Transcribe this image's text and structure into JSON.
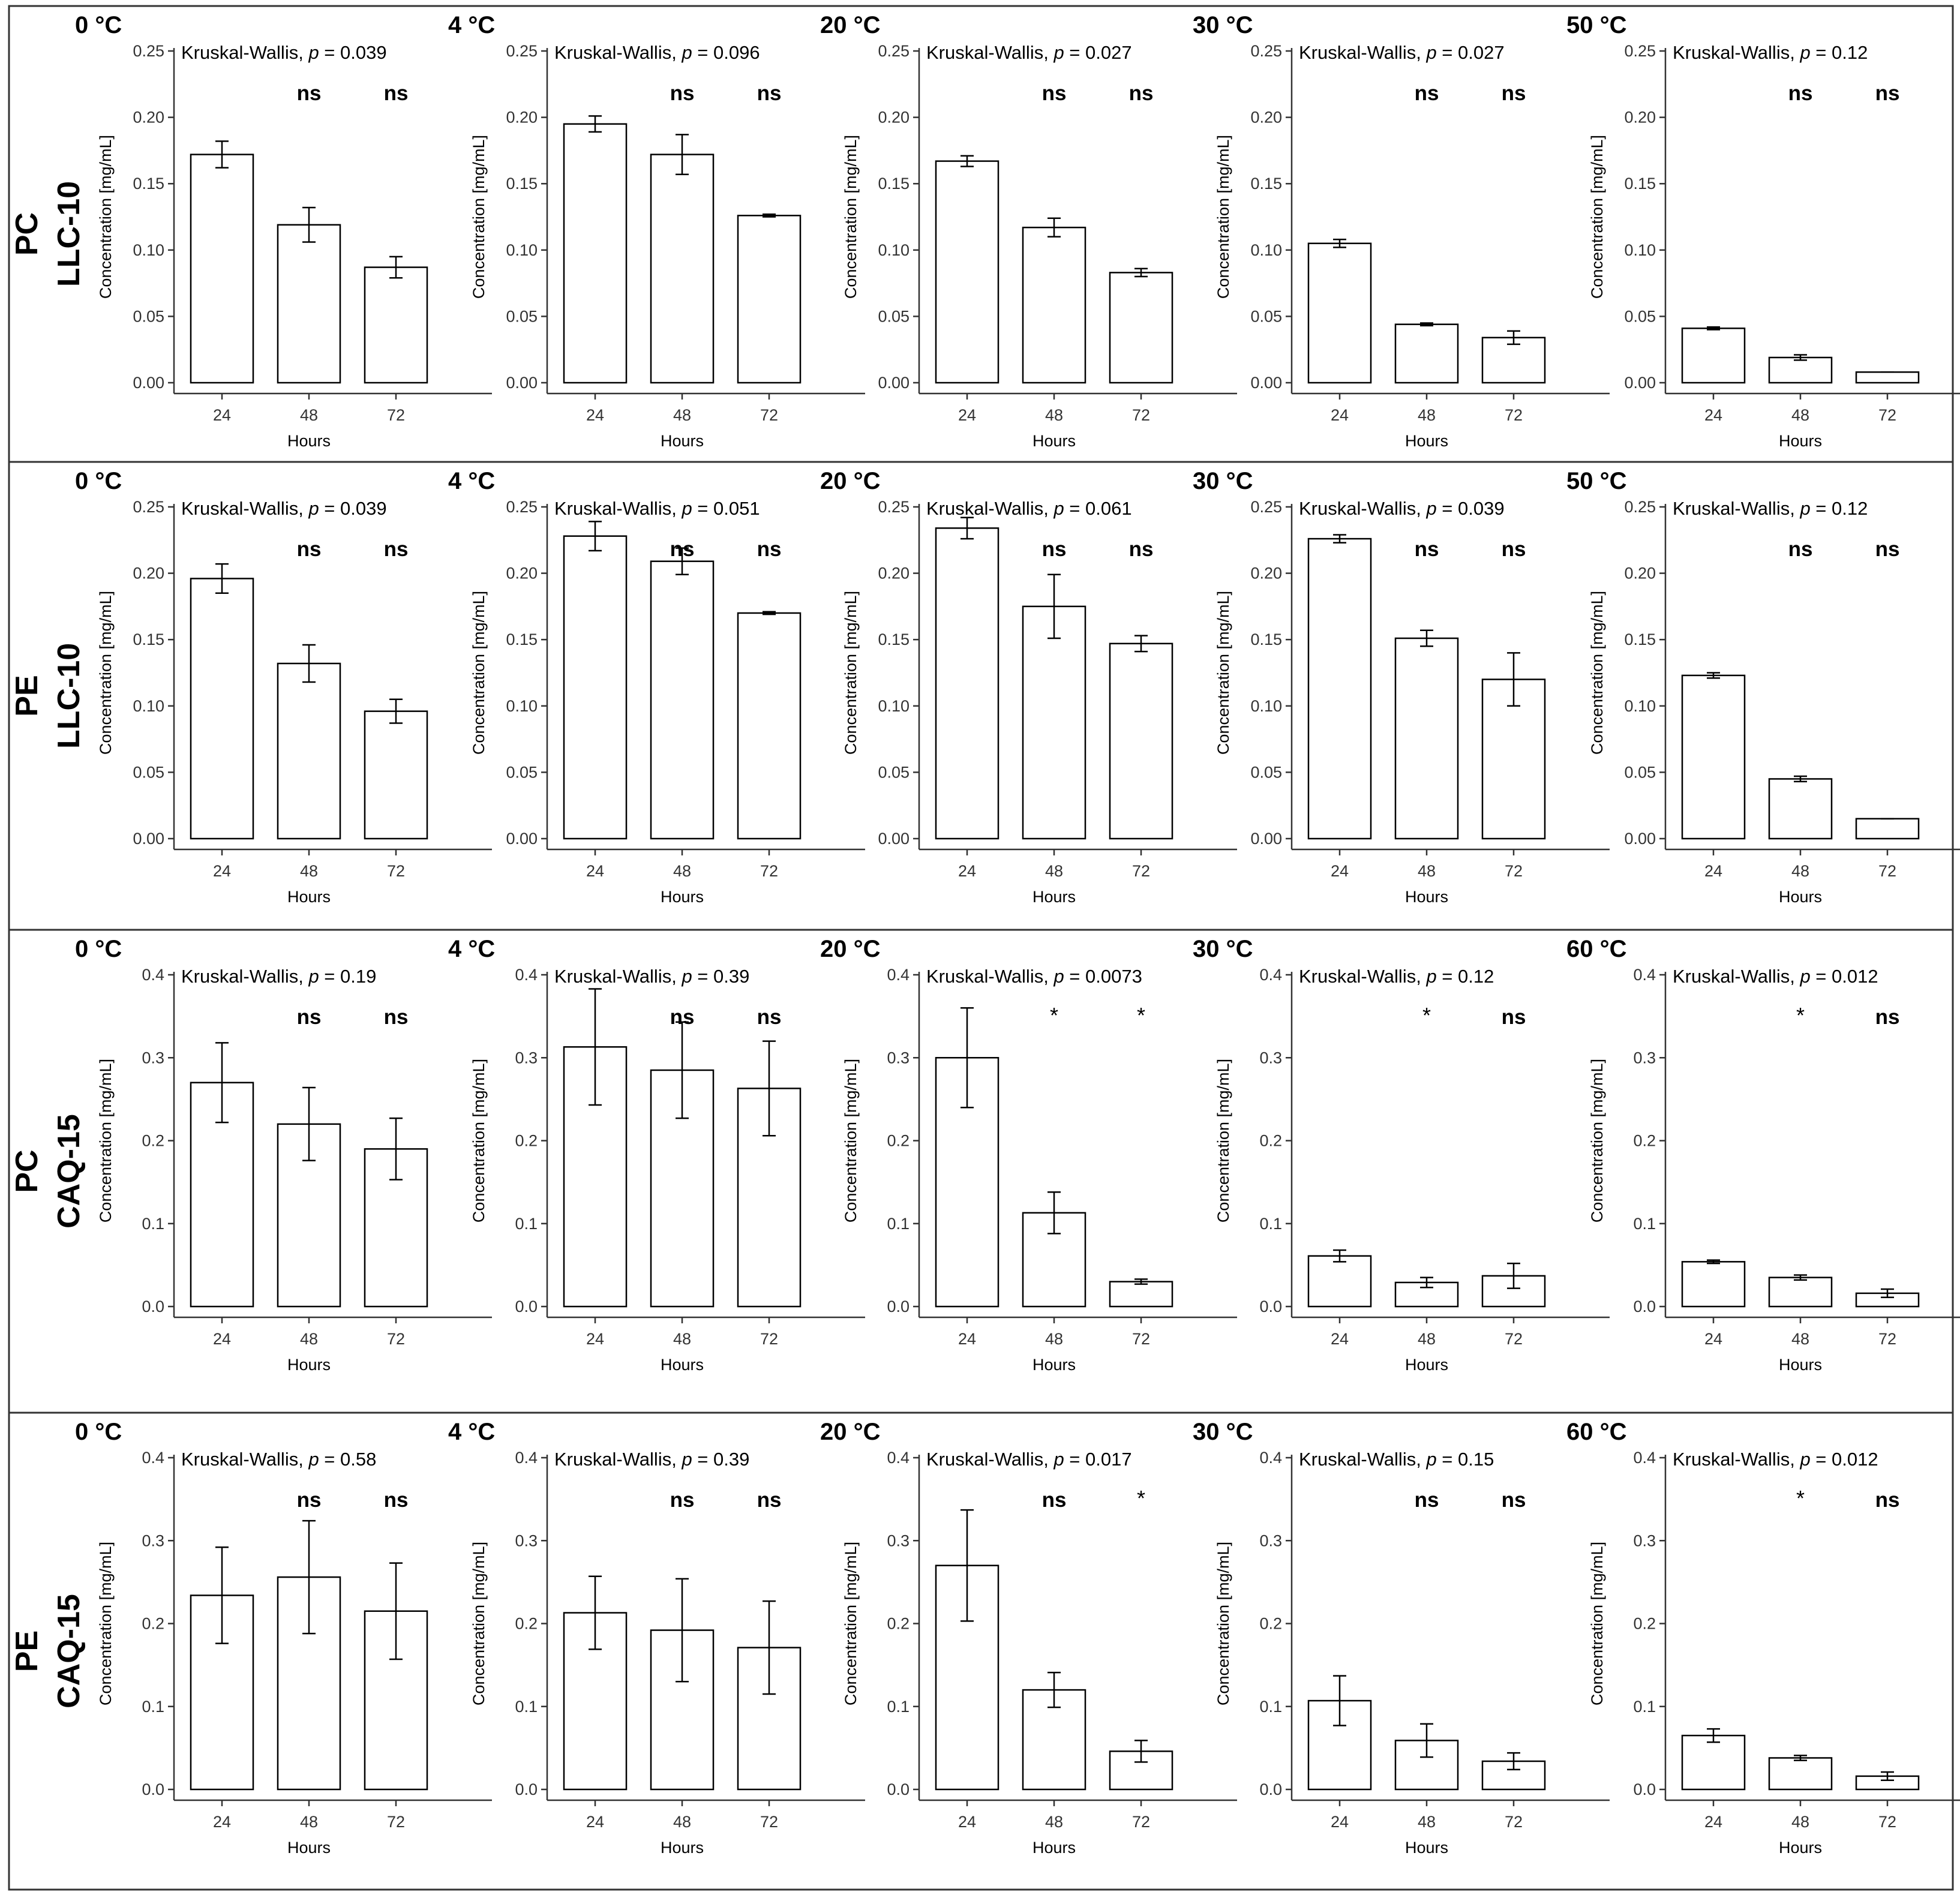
{
  "colors": {
    "bar_fill": "#ffffff",
    "bar_stroke": "#000000",
    "frame": "#333333",
    "axis": "#333333"
  },
  "chart_data": [
    {
      "type": "bar",
      "row_label": [
        "PC",
        "LLC-10"
      ],
      "ylim": [
        0,
        0.25
      ],
      "yticks": [
        "0.00",
        "0.05",
        "0.10",
        "0.15",
        "0.20",
        "0.25"
      ],
      "panels": [
        {
          "title": "0 °C",
          "test_label": "Kruskal-Wallis, ",
          "p_label": "p",
          "p_value": " = 0.039",
          "categories": [
            "24",
            "48",
            "72"
          ],
          "values": [
            0.172,
            0.119,
            0.087
          ],
          "errors": [
            0.01,
            0.013,
            0.008
          ],
          "significance": [
            "",
            "ns",
            "ns"
          ],
          "xlabel": "Hours",
          "ylabel": "Concentration [mg/mL]"
        },
        {
          "title": "4 °C",
          "test_label": "Kruskal-Wallis, ",
          "p_label": "p",
          "p_value": " = 0.096",
          "categories": [
            "24",
            "48",
            "72"
          ],
          "values": [
            0.195,
            0.172,
            0.126
          ],
          "errors": [
            0.006,
            0.015,
            0.001
          ],
          "significance": [
            "",
            "ns",
            "ns"
          ],
          "xlabel": "Hours",
          "ylabel": "Concentration [mg/mL]"
        },
        {
          "title": "20 °C",
          "test_label": "Kruskal-Wallis, ",
          "p_label": "p",
          "p_value": " = 0.027",
          "categories": [
            "24",
            "48",
            "72"
          ],
          "values": [
            0.167,
            0.117,
            0.083
          ],
          "errors": [
            0.004,
            0.007,
            0.003
          ],
          "significance": [
            "",
            "ns",
            "ns"
          ],
          "xlabel": "Hours",
          "ylabel": "Concentration [mg/mL]"
        },
        {
          "title": "30 °C",
          "test_label": "Kruskal-Wallis, ",
          "p_label": "p",
          "p_value": " = 0.027",
          "categories": [
            "24",
            "48",
            "72"
          ],
          "values": [
            0.105,
            0.044,
            0.034
          ],
          "errors": [
            0.003,
            0.001,
            0.005
          ],
          "significance": [
            "",
            "ns",
            "ns"
          ],
          "xlabel": "Hours",
          "ylabel": "Concentration [mg/mL]"
        },
        {
          "title": "50 °C",
          "test_label": "Kruskal-Wallis, ",
          "p_label": "p",
          "p_value": " = 0.12",
          "categories": [
            "24",
            "48",
            "72"
          ],
          "values": [
            0.041,
            0.019,
            0.008
          ],
          "errors": [
            0.001,
            0.002,
            0.0
          ],
          "significance": [
            "",
            "ns",
            "ns"
          ],
          "xlabel": "Hours",
          "ylabel": "Concentration [mg/mL]"
        }
      ]
    },
    {
      "type": "bar",
      "row_label": [
        "PE",
        "LLC-10"
      ],
      "ylim": [
        0,
        0.25
      ],
      "yticks": [
        "0.00",
        "0.05",
        "0.10",
        "0.15",
        "0.20",
        "0.25"
      ],
      "panels": [
        {
          "title": "0 °C",
          "test_label": "Kruskal-Wallis, ",
          "p_label": "p",
          "p_value": " = 0.039",
          "categories": [
            "24",
            "48",
            "72"
          ],
          "values": [
            0.196,
            0.132,
            0.096
          ],
          "errors": [
            0.011,
            0.014,
            0.009
          ],
          "significance": [
            "",
            "ns",
            "ns"
          ],
          "xlabel": "Hours",
          "ylabel": "Concentration [mg/mL]"
        },
        {
          "title": "4 °C",
          "test_label": "Kruskal-Wallis, ",
          "p_label": "p",
          "p_value": " = 0.051",
          "categories": [
            "24",
            "48",
            "72"
          ],
          "values": [
            0.228,
            0.209,
            0.17
          ],
          "errors": [
            0.011,
            0.01,
            0.001
          ],
          "significance": [
            "",
            "ns",
            "ns"
          ],
          "xlabel": "Hours",
          "ylabel": "Concentration [mg/mL]"
        },
        {
          "title": "20 °C",
          "test_label": "Kruskal-Wallis, ",
          "p_label": "p",
          "p_value": " = 0.061",
          "categories": [
            "24",
            "48",
            "72"
          ],
          "values": [
            0.234,
            0.175,
            0.147
          ],
          "errors": [
            0.008,
            0.024,
            0.006
          ],
          "significance": [
            "",
            "ns",
            "ns"
          ],
          "xlabel": "Hours",
          "ylabel": "Concentration [mg/mL]"
        },
        {
          "title": "30 °C",
          "test_label": "Kruskal-Wallis, ",
          "p_label": "p",
          "p_value": " = 0.039",
          "categories": [
            "24",
            "48",
            "72"
          ],
          "values": [
            0.226,
            0.151,
            0.12
          ],
          "errors": [
            0.003,
            0.006,
            0.02
          ],
          "significance": [
            "",
            "ns",
            "ns"
          ],
          "xlabel": "Hours",
          "ylabel": "Concentration [mg/mL]"
        },
        {
          "title": "50 °C",
          "test_label": "Kruskal-Wallis, ",
          "p_label": "p",
          "p_value": " = 0.12",
          "categories": [
            "24",
            "48",
            "72"
          ],
          "values": [
            0.123,
            0.045,
            0.015
          ],
          "errors": [
            0.002,
            0.002,
            0.0
          ],
          "significance": [
            "",
            "ns",
            "ns"
          ],
          "xlabel": "Hours",
          "ylabel": "Concentration [mg/mL]"
        }
      ]
    },
    {
      "type": "bar",
      "row_label": [
        "PC",
        "CAQ-15"
      ],
      "ylim": [
        0,
        0.4
      ],
      "yticks": [
        "0.0",
        "0.1",
        "0.2",
        "0.3",
        "0.4"
      ],
      "panels": [
        {
          "title": "0 °C",
          "test_label": "Kruskal-Wallis, ",
          "p_label": "p",
          "p_value": " = 0.19",
          "categories": [
            "24",
            "48",
            "72"
          ],
          "values": [
            0.27,
            0.22,
            0.19
          ],
          "errors": [
            0.048,
            0.044,
            0.037
          ],
          "significance": [
            "",
            "ns",
            "ns"
          ],
          "xlabel": "Hours",
          "ylabel": "Concentration [mg/mL]"
        },
        {
          "title": "4 °C",
          "test_label": "Kruskal-Wallis, ",
          "p_label": "p",
          "p_value": " = 0.39",
          "categories": [
            "24",
            "48",
            "72"
          ],
          "values": [
            0.313,
            0.285,
            0.263
          ],
          "errors": [
            0.07,
            0.058,
            0.057
          ],
          "significance": [
            "",
            "ns",
            "ns"
          ],
          "xlabel": "Hours",
          "ylabel": "Concentration [mg/mL]"
        },
        {
          "title": "20 °C",
          "test_label": "Kruskal-Wallis, ",
          "p_label": "p",
          "p_value": " = 0.0073",
          "categories": [
            "24",
            "48",
            "72"
          ],
          "values": [
            0.3,
            0.113,
            0.03
          ],
          "errors": [
            0.06,
            0.025,
            0.003
          ],
          "significance": [
            "",
            "*",
            "*"
          ],
          "xlabel": "Hours",
          "ylabel": "Concentration [mg/mL]"
        },
        {
          "title": "30 °C",
          "test_label": "Kruskal-Wallis, ",
          "p_label": "p",
          "p_value": " = 0.12",
          "categories": [
            "24",
            "48",
            "72"
          ],
          "values": [
            0.061,
            0.029,
            0.037
          ],
          "errors": [
            0.007,
            0.006,
            0.015
          ],
          "significance": [
            "",
            "*",
            "ns"
          ],
          "xlabel": "Hours",
          "ylabel": "Concentration [mg/mL]"
        },
        {
          "title": "60 °C",
          "test_label": "Kruskal-Wallis, ",
          "p_label": "p",
          "p_value": " = 0.012",
          "categories": [
            "24",
            "48",
            "72"
          ],
          "values": [
            0.054,
            0.035,
            0.016
          ],
          "errors": [
            0.002,
            0.003,
            0.005
          ],
          "significance": [
            "",
            "*",
            "ns"
          ],
          "xlabel": "Hours",
          "ylabel": "Concentration [mg/mL]"
        }
      ]
    },
    {
      "type": "bar",
      "row_label": [
        "PE",
        "CAQ-15"
      ],
      "ylim": [
        0,
        0.4
      ],
      "yticks": [
        "0.0",
        "0.1",
        "0.2",
        "0.3",
        "0.4"
      ],
      "panels": [
        {
          "title": "0 °C",
          "test_label": "Kruskal-Wallis, ",
          "p_label": "p",
          "p_value": " = 0.58",
          "categories": [
            "24",
            "48",
            "72"
          ],
          "values": [
            0.234,
            0.256,
            0.215
          ],
          "errors": [
            0.058,
            0.068,
            0.058
          ],
          "significance": [
            "",
            "ns",
            "ns"
          ],
          "xlabel": "Hours",
          "ylabel": "Concentration [mg/mL]"
        },
        {
          "title": "4 °C",
          "test_label": "Kruskal-Wallis, ",
          "p_label": "p",
          "p_value": " = 0.39",
          "categories": [
            "24",
            "48",
            "72"
          ],
          "values": [
            0.213,
            0.192,
            0.171
          ],
          "errors": [
            0.044,
            0.062,
            0.056
          ],
          "significance": [
            "",
            "ns",
            "ns"
          ],
          "xlabel": "Hours",
          "ylabel": "Concentration [mg/mL]"
        },
        {
          "title": "20 °C",
          "test_label": "Kruskal-Wallis, ",
          "p_label": "p",
          "p_value": " = 0.017",
          "categories": [
            "24",
            "48",
            "72"
          ],
          "values": [
            0.27,
            0.12,
            0.046
          ],
          "errors": [
            0.067,
            0.021,
            0.013
          ],
          "significance": [
            "",
            "ns",
            "*"
          ],
          "xlabel": "Hours",
          "ylabel": "Concentration [mg/mL]"
        },
        {
          "title": "30 °C",
          "test_label": "Kruskal-Wallis, ",
          "p_label": "p",
          "p_value": " = 0.15",
          "categories": [
            "24",
            "48",
            "72"
          ],
          "values": [
            0.107,
            0.059,
            0.034
          ],
          "errors": [
            0.03,
            0.02,
            0.01
          ],
          "significance": [
            "",
            "ns",
            "ns"
          ],
          "xlabel": "Hours",
          "ylabel": "Concentration [mg/mL]"
        },
        {
          "title": "60 °C",
          "test_label": "Kruskal-Wallis, ",
          "p_label": "p",
          "p_value": " = 0.012",
          "categories": [
            "24",
            "48",
            "72"
          ],
          "values": [
            0.065,
            0.038,
            0.016
          ],
          "errors": [
            0.008,
            0.003,
            0.005
          ],
          "significance": [
            "",
            "*",
            "ns"
          ],
          "xlabel": "Hours",
          "ylabel": "Concentration [mg/mL]"
        }
      ]
    }
  ]
}
